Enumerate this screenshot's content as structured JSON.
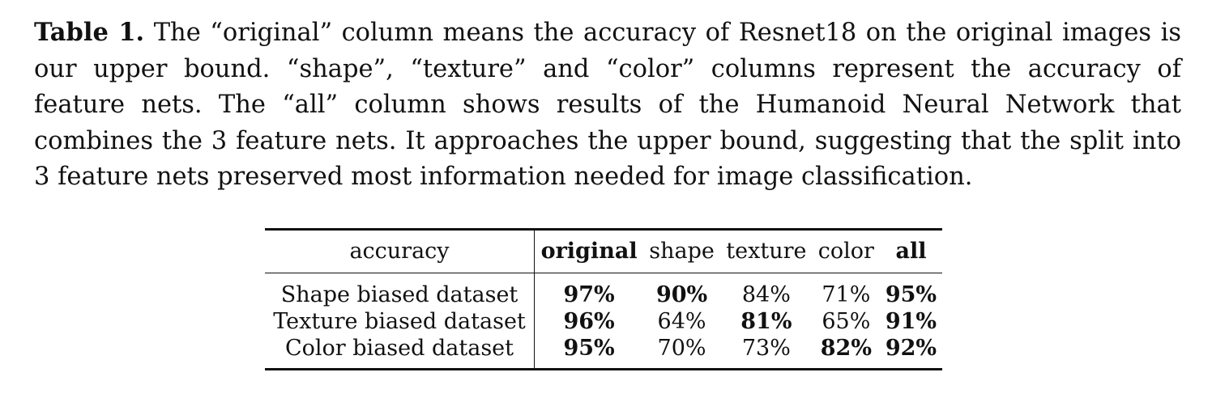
{
  "caption": {
    "label": "Table 1.",
    "text": "The “original” column means the accuracy of Resnet18 on the original images is our upper bound. “shape”, “texture” and “color” columns represent the accuracy of feature nets. The “all” column shows results of the Humanoid Neural Network that combines the 3 feature nets. It approaches the upper bound, suggesting that the split into 3 feature nets preserved most information needed for image classification."
  },
  "table": {
    "headers": [
      "accuracy",
      "original",
      "shape",
      "texture",
      "color",
      "all"
    ],
    "rows": [
      {
        "label": "Shape biased dataset",
        "original": "97%",
        "shape": "90%",
        "texture": "84%",
        "color": "71%",
        "all": "95%"
      },
      {
        "label": "Texture biased dataset",
        "original": "96%",
        "shape": "64%",
        "texture": "81%",
        "color": "65%",
        "all": "91%"
      },
      {
        "label": "Color biased dataset",
        "original": "95%",
        "shape": "70%",
        "texture": "73%",
        "color": "82%",
        "all": "92%"
      }
    ]
  }
}
